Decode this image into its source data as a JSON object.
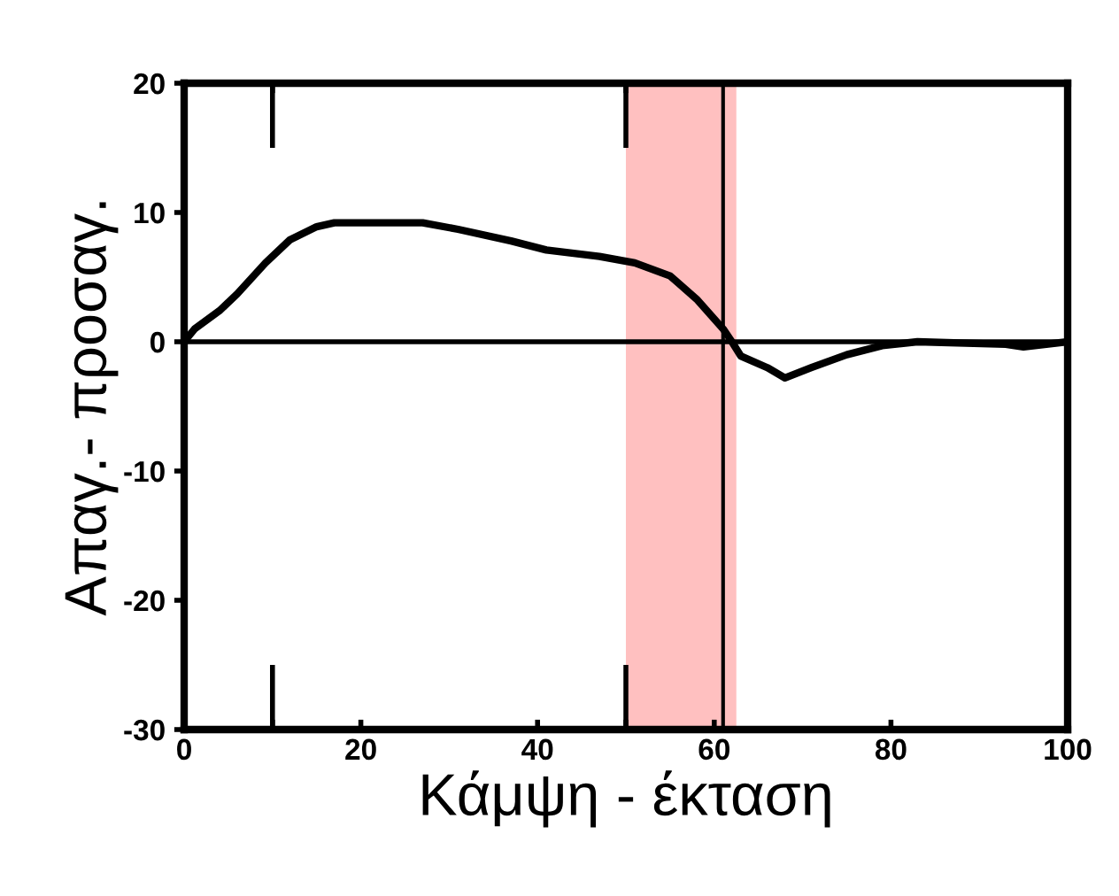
{
  "chart_data": {
    "type": "line",
    "xlabel": "Κάμψη - έκταση",
    "ylabel": "Απαγ.- προσαγ.",
    "x": [
      0,
      1.2,
      4,
      6,
      9.2,
      12,
      15,
      17,
      27,
      31,
      37,
      41,
      47,
      51,
      55,
      58,
      61,
      62,
      63,
      66,
      68,
      71,
      75,
      79,
      83,
      93,
      95,
      100
    ],
    "series": [
      {
        "color": "#000000",
        "values": [
          0,
          1,
          2.4,
          3.7,
          6.1,
          7.9,
          8.9,
          9.2,
          9.2,
          8.7,
          7.8,
          7.1,
          6.6,
          6.1,
          5.1,
          3.3,
          1,
          0,
          -1.1,
          -2,
          -2.8,
          -2,
          -1,
          -0.3,
          0,
          -0.2,
          -0.4,
          0
        ]
      }
    ],
    "xlim": [
      0,
      100
    ],
    "ylim": [
      -30,
      20
    ],
    "xticks": [
      0,
      {
        "value": 10,
        "label": null
      },
      20,
      40,
      {
        "value": 50,
        "label": null
      },
      60,
      80,
      100
    ],
    "yticks": [
      -30,
      -20,
      -10,
      0,
      10,
      20
    ],
    "ref_lines": [
      {
        "axis": "y",
        "value": 0,
        "color": "#000000"
      },
      {
        "axis": "x",
        "value": 61,
        "color": "#000000"
      }
    ],
    "bands": [
      {
        "axis": "x",
        "from": 50,
        "to": 62.5,
        "color": "#ffc0c0"
      }
    ],
    "grid": false,
    "legend": false,
    "marker": "none",
    "line_style": "solid"
  }
}
